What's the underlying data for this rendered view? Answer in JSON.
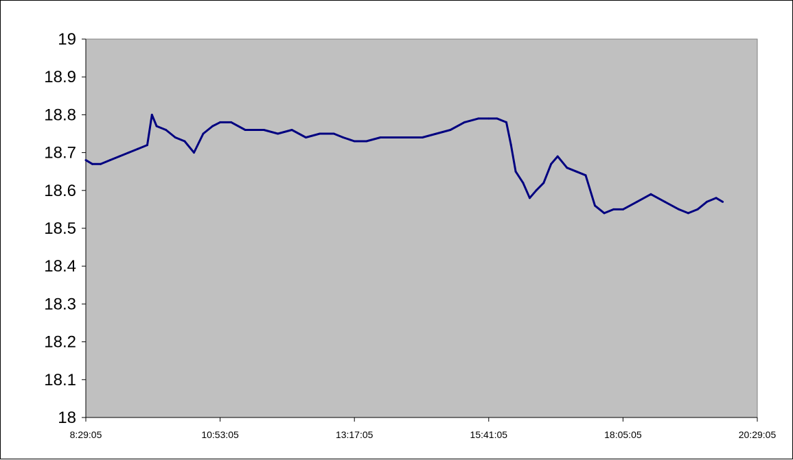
{
  "chart_data": {
    "type": "line",
    "title": "",
    "xlabel": "",
    "ylabel": "",
    "x_tick_labels": [
      "8:29:05",
      "10:53:05",
      "13:17:05",
      "15:41:05",
      "18:05:05",
      "20:29:05"
    ],
    "y_tick_labels": [
      "18",
      "18.1",
      "18.2",
      "18.3",
      "18.4",
      "18.5",
      "18.6",
      "18.7",
      "18.8",
      "18.9",
      "19"
    ],
    "xlim": [
      "8:29:05",
      "20:29:05"
    ],
    "ylim": [
      18,
      19
    ],
    "y_ticks": [
      18,
      18.1,
      18.2,
      18.3,
      18.4,
      18.5,
      18.6,
      18.7,
      18.8,
      18.9,
      19
    ],
    "grid": false,
    "legend": "none",
    "colors": {
      "plot_area": "#c0c0c0",
      "series": "#000080",
      "axis": "#000000"
    },
    "series": [
      {
        "x": [
          "8:29:05",
          "8:36:00",
          "8:45:00",
          "8:55:00",
          "9:05:00",
          "9:15:00",
          "9:25:00",
          "9:35:00",
          "9:40:00",
          "9:45:00",
          "9:55:00",
          "10:05:00",
          "10:15:00",
          "10:25:00",
          "10:35:00",
          "10:45:00",
          "10:53:05",
          "11:05:00",
          "11:20:00",
          "11:40:00",
          "11:55:00",
          "12:10:00",
          "12:25:00",
          "12:40:00",
          "12:55:00",
          "13:05:00",
          "13:17:05",
          "13:30:00",
          "13:45:00",
          "14:00:00",
          "14:15:00",
          "14:30:00",
          "14:45:00",
          "15:00:00",
          "15:15:00",
          "15:30:00",
          "15:41:05",
          "15:50:00",
          "16:00:00",
          "16:05:00",
          "16:10:00",
          "16:18:00",
          "16:25:00",
          "16:32:00",
          "16:40:00",
          "16:48:00",
          "16:55:00",
          "17:05:00",
          "17:15:00",
          "17:25:00",
          "17:35:00",
          "17:45:00",
          "17:55:00",
          "18:05:05",
          "18:20:00",
          "18:35:00",
          "18:50:00",
          "19:05:00",
          "19:15:00",
          "19:25:00",
          "19:35:00",
          "19:45:00",
          "19:52:00"
        ],
        "values": [
          18.68,
          18.67,
          18.67,
          18.68,
          18.69,
          18.7,
          18.71,
          18.72,
          18.8,
          18.77,
          18.76,
          18.74,
          18.73,
          18.7,
          18.75,
          18.77,
          18.78,
          18.78,
          18.76,
          18.76,
          18.75,
          18.76,
          18.74,
          18.75,
          18.75,
          18.74,
          18.73,
          18.73,
          18.74,
          18.74,
          18.74,
          18.74,
          18.75,
          18.76,
          18.78,
          18.79,
          18.79,
          18.79,
          18.78,
          18.72,
          18.65,
          18.62,
          18.58,
          18.6,
          18.62,
          18.67,
          18.69,
          18.66,
          18.65,
          18.64,
          18.56,
          18.54,
          18.55,
          18.55,
          18.57,
          18.59,
          18.57,
          18.55,
          18.54,
          18.55,
          18.57,
          18.58,
          18.57
        ]
      }
    ]
  }
}
